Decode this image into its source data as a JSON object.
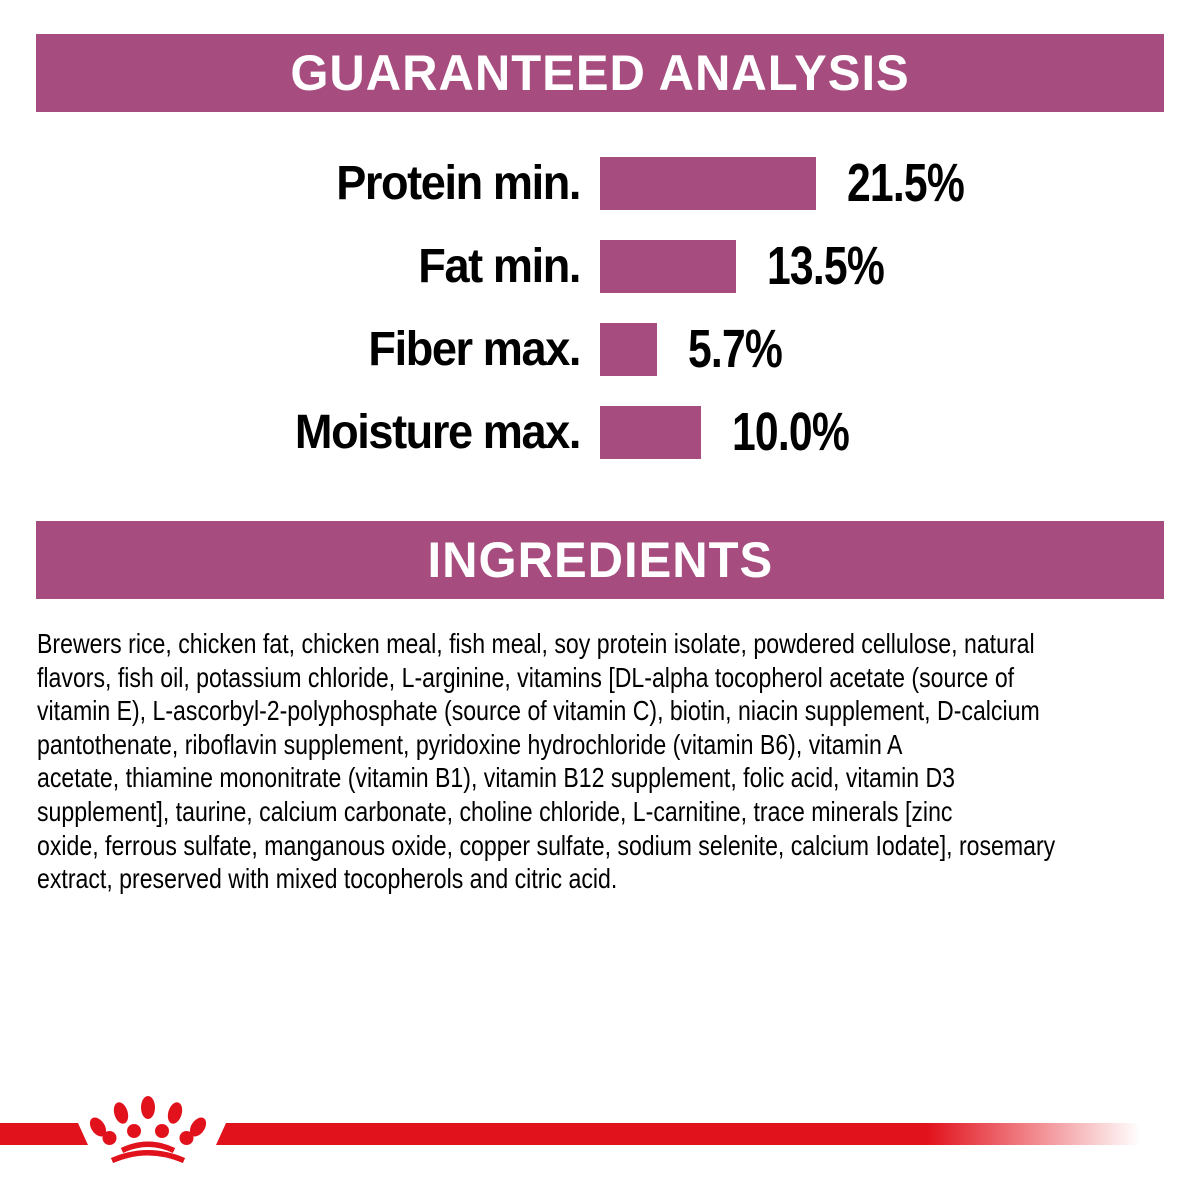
{
  "colors": {
    "purple": "#a74c7e",
    "red": "#e2121c",
    "text": "#000000",
    "banner_text": "#ffffff"
  },
  "sections": {
    "guaranteed_analysis": {
      "title": "GUARANTEED ANALYSIS"
    },
    "ingredients": {
      "title": "INGREDIENTS",
      "lines": [
        "Brewers rice, chicken fat, chicken meal, fish meal, soy protein isolate, powdered cellulose, natural",
        "flavors, fish oil, potassium chloride, L-arginine, vitamins [DL-alpha tocopherol acetate (source of",
        "vitamin E), L-ascorbyl-2-polyphosphate (source of vitamin C), biotin, niacin supplement, D-calcium",
        "pantothenate, riboflavin supplement, pyridoxine hydrochloride (vitamin B6), vitamin A",
        "acetate, thiamine mononitrate (vitamin B1), vitamin B12 supplement, folic acid, vitamin D3",
        "supplement], taurine, calcium carbonate, choline chloride, L-carnitine, trace minerals [zinc",
        "oxide, ferrous sulfate, manganous oxide, copper sulfate, sodium selenite, calcium Iodate], rosemary",
        "extract, preserved with mixed tocopherols and citric acid."
      ]
    }
  },
  "chart_data": {
    "type": "bar",
    "orientation": "horizontal",
    "title": "GUARANTEED ANALYSIS",
    "categories": [
      "Protein min.",
      "Fat min.",
      "Fiber max.",
      "Moisture max."
    ],
    "values": [
      21.5,
      13.5,
      5.7,
      10.0
    ],
    "value_labels": [
      "21.5%",
      "13.5%",
      "5.7%",
      "10.0%"
    ],
    "unit": "%",
    "bar_color": "#a74c7e",
    "grid": false,
    "legend": false,
    "axis_labels": false
  },
  "footer": {
    "logo": "royal-canin-crown-icon"
  }
}
